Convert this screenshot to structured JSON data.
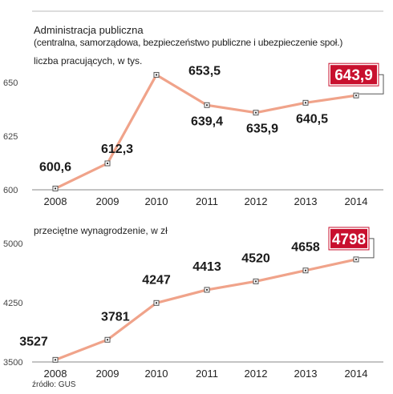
{
  "header": {
    "title": "Administracja publiczna",
    "subtitle": "(centralna, samorządowa, bezpieczeństwo publiczne i ubezpieczenie społ.)"
  },
  "source": "źródło: GUS",
  "colors": {
    "line": "#f0a38a",
    "highlight": "#c8102e",
    "text": "#1a1a1a",
    "axis": "#888888"
  },
  "chart_data": [
    {
      "type": "line",
      "ylabel": "liczba pracujących, w tys.",
      "categories": [
        "2008",
        "2009",
        "2010",
        "2011",
        "2012",
        "2013",
        "2014"
      ],
      "values": [
        600.6,
        612.3,
        653.5,
        639.4,
        635.9,
        640.5,
        643.9
      ],
      "labels": [
        "600,6",
        "612,3",
        "653,5",
        "639,4",
        "635,9",
        "640,5",
        "643,9"
      ],
      "yticks": [
        600,
        625,
        650
      ],
      "ylim": [
        600,
        660
      ],
      "highlight_index": 6
    },
    {
      "type": "line",
      "ylabel": "przeciętne wynagrodzenie, w zł",
      "categories": [
        "2008",
        "2009",
        "2010",
        "2011",
        "2012",
        "2013",
        "2014"
      ],
      "values": [
        3527,
        3781,
        4247,
        4413,
        4520,
        4658,
        4798
      ],
      "labels": [
        "3527",
        "3781",
        "4247",
        "4413",
        "4520",
        "4658",
        "4798"
      ],
      "yticks": [
        3500,
        4250,
        5000
      ],
      "ylim": [
        3500,
        5000
      ],
      "highlight_index": 6
    }
  ]
}
